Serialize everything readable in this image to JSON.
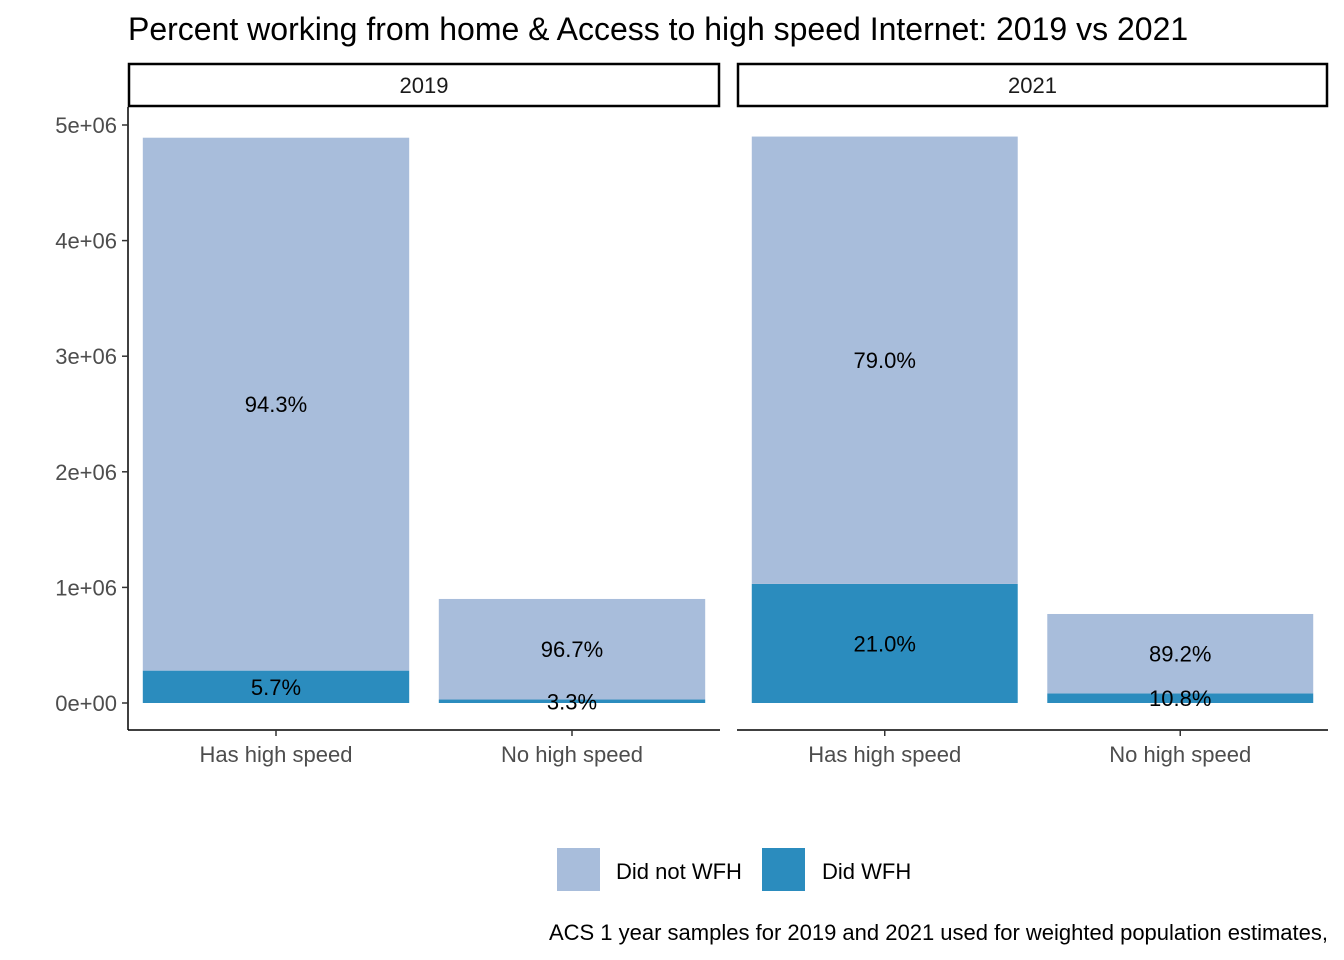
{
  "chart_data": {
    "type": "bar",
    "stacked": true,
    "title": "Percent working from home & Access to high speed Internet: 2019 vs 2021",
    "caption": "ACS 1 year samples for 2019 and 2021 used for weighted population estimates,",
    "xlabel": "",
    "ylabel": "",
    "ylim": [
      0,
      5000000
    ],
    "y_ticks": [
      0,
      1000000,
      2000000,
      3000000,
      4000000,
      5000000
    ],
    "y_tick_labels": [
      "0e+00",
      "1e+06",
      "2e+06",
      "3e+06",
      "4e+06",
      "5e+06"
    ],
    "grid": false,
    "legend_position": "bottom",
    "categories": [
      "Has high speed",
      "No high speed"
    ],
    "legend": [
      {
        "name": "Did not WFH",
        "color": "#a8bddb"
      },
      {
        "name": "Did WFH",
        "color": "#2b8cbe"
      }
    ],
    "panels": [
      {
        "label": "2019",
        "bars": [
          {
            "category": "Has high speed",
            "segments": [
              {
                "series": "Did WFH",
                "value": 280000,
                "label": "5.7%"
              },
              {
                "series": "Did not WFH",
                "value": 4610000,
                "label": "94.3%"
              }
            ]
          },
          {
            "category": "No high speed",
            "segments": [
              {
                "series": "Did WFH",
                "value": 30000,
                "label": "3.3%"
              },
              {
                "series": "Did not WFH",
                "value": 870000,
                "label": "96.7%"
              }
            ]
          }
        ]
      },
      {
        "label": "2021",
        "bars": [
          {
            "category": "Has high speed",
            "segments": [
              {
                "series": "Did WFH",
                "value": 1030000,
                "label": "21.0%"
              },
              {
                "series": "Did not WFH",
                "value": 3870000,
                "label": "79.0%"
              }
            ]
          },
          {
            "category": "No high speed",
            "segments": [
              {
                "series": "Did WFH",
                "value": 83000,
                "label": "10.8%"
              },
              {
                "series": "Did not WFH",
                "value": 687000,
                "label": "89.2%"
              }
            ]
          }
        ]
      }
    ]
  }
}
